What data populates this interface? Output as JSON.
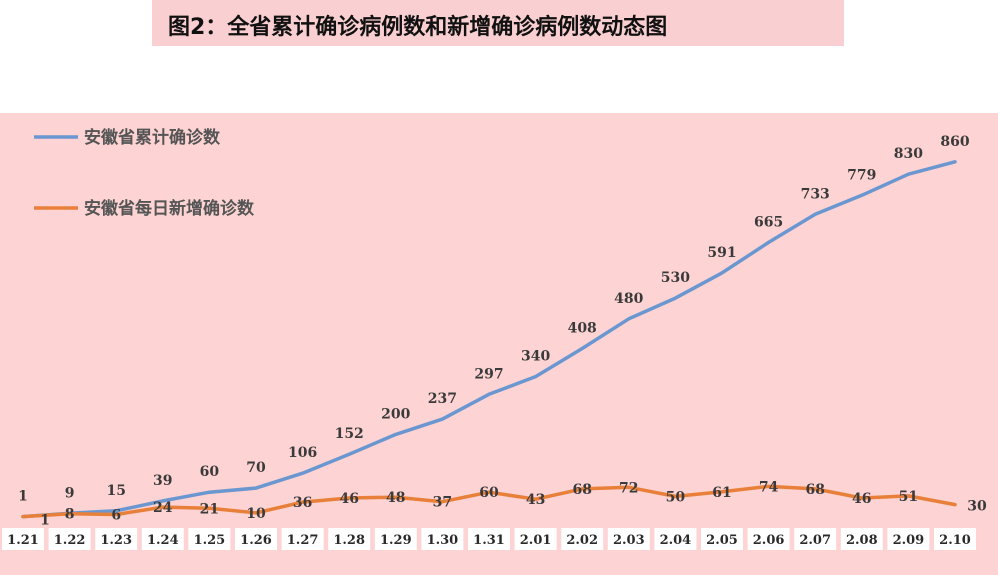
{
  "page": {
    "title": "图2：全省累计确诊病例数和新增确诊病例数动态图"
  },
  "chart_data": {
    "type": "line",
    "categories": [
      "1.21",
      "1.22",
      "1.23",
      "1.24",
      "1.25",
      "1.26",
      "1.27",
      "1.28",
      "1.29",
      "1.30",
      "1.31",
      "2.01",
      "2.02",
      "2.03",
      "2.04",
      "2.05",
      "2.06",
      "2.07",
      "2.08",
      "2.09",
      "2.10"
    ],
    "series": [
      {
        "name": "安徽省累计确诊数",
        "color": "#6b97d1",
        "values": [
          1,
          9,
          15,
          39,
          60,
          70,
          106,
          152,
          200,
          237,
          297,
          340,
          408,
          480,
          530,
          591,
          665,
          733,
          779,
          830,
          860
        ]
      },
      {
        "name": "安徽省每日新增确诊数",
        "color": "#e8803a",
        "values": [
          1,
          8,
          6,
          24,
          21,
          10,
          36,
          46,
          48,
          37,
          60,
          43,
          68,
          72,
          50,
          61,
          74,
          68,
          46,
          51,
          30
        ]
      }
    ],
    "ylim": [
      0,
      900
    ],
    "grid": false,
    "legend": "top-left"
  }
}
